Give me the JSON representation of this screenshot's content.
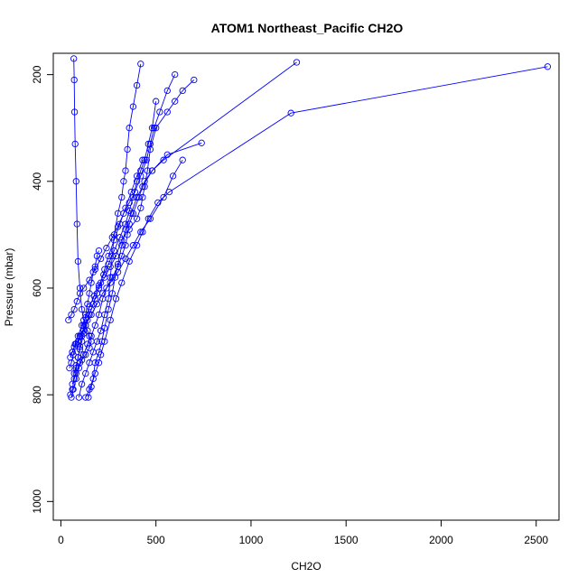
{
  "chart_data": {
    "type": "line",
    "title": "ATOM1 Northeast_Pacific CH2O",
    "xlabel": "CH2O",
    "ylabel": "Pressure (mbar)",
    "xlim": [
      -40,
      2620
    ],
    "ylim": [
      1035,
      160
    ],
    "y_reversed": true,
    "x_ticks": [
      0,
      500,
      1000,
      1500,
      2000,
      2500
    ],
    "y_ticks": [
      200,
      400,
      600,
      800,
      1000
    ],
    "color": "#0000ff",
    "marker": "open-circle",
    "series": [
      {
        "x": [
          55,
          65,
          80,
          95,
          110,
          130,
          150,
          160,
          150,
          140,
          120,
          110,
          100,
          90,
          85,
          80,
          75,
          72,
          70,
          68
        ],
        "y": [
          805,
          790,
          770,
          750,
          735,
          725,
          712,
          700,
          690,
          680,
          660,
          640,
          600,
          550,
          480,
          400,
          330,
          270,
          210,
          170
        ]
      },
      {
        "x": [
          95,
          110,
          130,
          150,
          170,
          190,
          210,
          230,
          250,
          260,
          270,
          280,
          300,
          320,
          330,
          340,
          350,
          360,
          380,
          400,
          420
        ],
        "y": [
          805,
          780,
          760,
          740,
          720,
          700,
          680,
          650,
          620,
          580,
          540,
          500,
          460,
          430,
          400,
          380,
          340,
          300,
          260,
          220,
          180
        ]
      },
      {
        "x": [
          130,
          150,
          170,
          180,
          200,
          215,
          230,
          250,
          270,
          285,
          300,
          320,
          340,
          370,
          400,
          430,
          480,
          560,
          740
        ],
        "y": [
          805,
          790,
          770,
          740,
          720,
          700,
          675,
          640,
          610,
          580,
          555,
          520,
          490,
          460,
          430,
          410,
          380,
          350,
          328
        ]
      },
      {
        "x": [
          145,
          160,
          180,
          200,
          210,
          230,
          260,
          290,
          320,
          360,
          400,
          430,
          460,
          510,
          570,
          1210,
          2560
        ],
        "y": [
          805,
          785,
          760,
          740,
          725,
          700,
          660,
          620,
          590,
          550,
          520,
          495,
          470,
          440,
          420,
          272,
          185
        ]
      },
      {
        "x": [
          60,
          80,
          100,
          120,
          140,
          160,
          180,
          200,
          220,
          240,
          270,
          300,
          320,
          340,
          350,
          360,
          380,
          410,
          440,
          480,
          540,
          1240
        ],
        "y": [
          780,
          760,
          740,
          725,
          705,
          690,
          670,
          650,
          620,
          600,
          580,
          560,
          540,
          520,
          500,
          480,
          460,
          430,
          400,
          380,
          360,
          177
        ]
      },
      {
        "x": [
          50,
          60,
          70,
          90,
          100,
          120,
          140,
          160,
          180,
          200,
          230,
          260,
          290,
          320,
          360,
          400,
          420,
          430,
          440,
          455,
          470,
          500,
          560,
          600,
          640,
          700
        ],
        "y": [
          730,
          720,
          710,
          700,
          690,
          680,
          660,
          640,
          620,
          600,
          580,
          560,
          540,
          510,
          490,
          470,
          450,
          430,
          410,
          380,
          340,
          300,
          270,
          250,
          230,
          210
        ]
      },
      {
        "x": [
          45,
          55,
          65,
          80,
          100,
          130,
          160,
          190,
          220,
          260,
          300,
          340,
          380,
          420,
          470,
          540,
          590,
          640
        ],
        "y": [
          750,
          740,
          725,
          705,
          690,
          670,
          650,
          630,
          610,
          590,
          570,
          545,
          520,
          495,
          470,
          430,
          390,
          360
        ]
      },
      {
        "x": [
          40,
          55,
          70,
          85,
          100,
          120,
          150,
          180,
          210,
          240,
          270,
          300,
          330,
          360,
          390,
          420,
          450,
          470,
          490,
          520,
          560,
          600
        ],
        "y": [
          660,
          650,
          640,
          625,
          610,
          600,
          585,
          565,
          545,
          525,
          505,
          485,
          460,
          440,
          420,
          390,
          360,
          330,
          300,
          270,
          230,
          200
        ]
      },
      {
        "x": [
          60,
          75,
          90,
          110,
          130,
          150,
          175,
          200,
          225,
          250,
          280,
          310,
          340,
          360,
          380,
          400,
          420,
          440,
          460,
          480,
          500
        ],
        "y": [
          720,
          705,
          690,
          670,
          655,
          635,
          615,
          595,
          575,
          555,
          530,
          505,
          480,
          455,
          430,
          400,
          380,
          360,
          330,
          300,
          250
        ]
      },
      {
        "x": [
          50,
          60,
          70,
          80,
          90,
          100,
          110,
          120,
          130,
          140,
          150,
          160,
          170,
          180,
          190,
          200
        ],
        "y": [
          800,
          790,
          770,
          750,
          730,
          710,
          690,
          670,
          650,
          630,
          610,
          590,
          570,
          560,
          540,
          530
        ]
      },
      {
        "x": [
          70,
          80,
          90,
          100,
          110,
          120,
          130,
          150,
          170,
          190,
          210,
          230,
          250,
          280,
          310,
          340,
          370,
          400,
          430
        ],
        "y": [
          760,
          745,
          730,
          715,
          700,
          685,
          670,
          650,
          630,
          610,
          590,
          565,
          540,
          510,
          480,
          450,
          420,
          390,
          360
        ]
      }
    ]
  }
}
